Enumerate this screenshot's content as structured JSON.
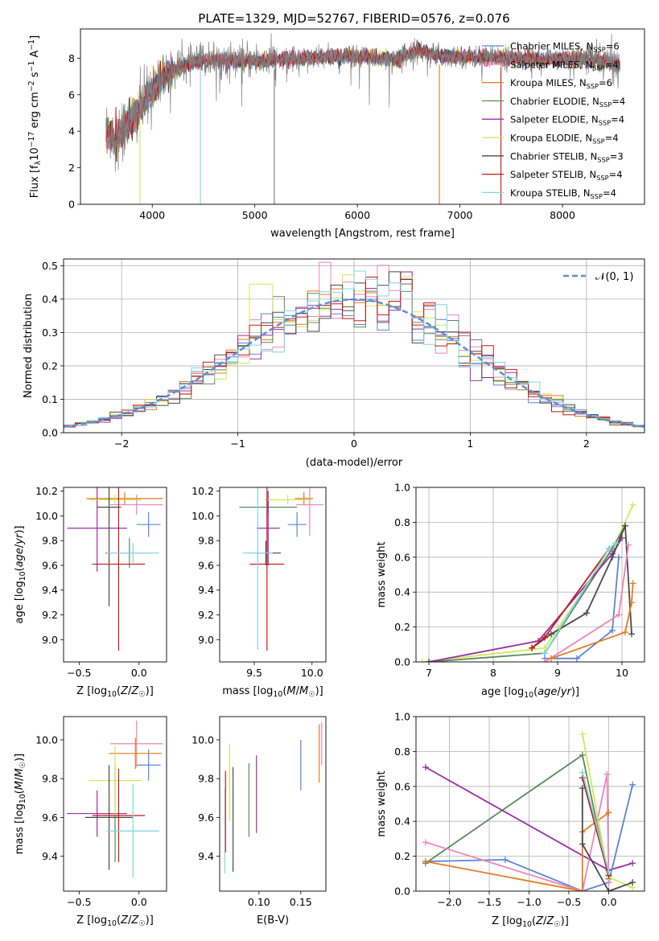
{
  "figure_title": "PLATE=1329, MJD=52767, FIBERID=0576, z=0.076",
  "colors": {
    "cb_miles": "#5b84d6",
    "sp_miles": "#ee84b4",
    "kr_miles": "#e67a1e",
    "cb_elodie": "#5b8a5b",
    "sp_elodie": "#9a2fa4",
    "kr_elodie": "#d0e85a",
    "cb_stelib": "#4a4a4a",
    "sp_stelib": "#c81818",
    "kr_stelib": "#7fd6de",
    "data": "#7f7f7f",
    "gauss": "#5b8fd6"
  },
  "chart_data": [
    {
      "id": "spectrum",
      "type": "line",
      "xlabel": "wavelength [Angstrom, rest frame]",
      "ylabel": "Flux [f_λ10^-17 erg cm^-2 s^-1 A^-1]",
      "xlim": [
        3300,
        8800
      ],
      "ylim": [
        0,
        9.6
      ],
      "xticks": [
        4000,
        5000,
        6000,
        7000,
        8000
      ],
      "yticks": [
        0,
        2,
        4,
        6,
        8
      ],
      "legend_position": "right",
      "legend": [
        {
          "label": "Chabrier MILES, N_SSP=6",
          "color_key": "cb_miles"
        },
        {
          "label": "Salpeter MILES, N_SSP=4",
          "color_key": "sp_miles"
        },
        {
          "label": "Kroupa MILES, N_SSP=6",
          "color_key": "kr_miles"
        },
        {
          "label": "Chabrier ELODIE, N_SSP=4",
          "color_key": "cb_elodie"
        },
        {
          "label": "Salpeter ELODIE, N_SSP=4",
          "color_key": "sp_elodie"
        },
        {
          "label": "Kroupa ELODIE, N_SSP=4",
          "color_key": "kr_elodie"
        },
        {
          "label": "Chabrier STELIB, N_SSP=3",
          "color_key": "cb_stelib"
        },
        {
          "label": "Salpeter STELIB, N_SSP=4",
          "color_key": "sp_stelib"
        },
        {
          "label": "Kroupa STELIB, N_SSP=4",
          "color_key": "kr_stelib"
        }
      ],
      "continuum": [
        [
          3550,
          4.1
        ],
        [
          3650,
          3.6
        ],
        [
          3750,
          4.4
        ],
        [
          3850,
          4.9
        ],
        [
          3950,
          5.9
        ],
        [
          4050,
          6.6
        ],
        [
          4150,
          7.2
        ],
        [
          4300,
          7.6
        ],
        [
          4500,
          7.9
        ],
        [
          4700,
          7.9
        ],
        [
          5000,
          7.85
        ],
        [
          5200,
          7.9
        ],
        [
          5500,
          8.0
        ],
        [
          5800,
          8.1
        ],
        [
          6100,
          8.05
        ],
        [
          6400,
          7.95
        ],
        [
          6560,
          8.45
        ],
        [
          6800,
          8.15
        ],
        [
          7100,
          8.05
        ],
        [
          7500,
          8.0
        ],
        [
          7800,
          7.95
        ],
        [
          8100,
          7.95
        ],
        [
          8400,
          7.85
        ],
        [
          8550,
          7.6
        ]
      ],
      "dips": [
        [
          3880,
          0
        ],
        [
          4470,
          0
        ],
        [
          5190,
          0
        ],
        [
          6800,
          0
        ],
        [
          7400,
          0
        ]
      ]
    },
    {
      "id": "residuals",
      "type": "histogram",
      "xlabel": "(data-model)/error",
      "ylabel": "Normed distribution",
      "xlim": [
        -2.5,
        2.5
      ],
      "ylim": [
        0,
        0.52
      ],
      "xticks": [
        -2,
        -1,
        0,
        1,
        2
      ],
      "ytick_labels": [
        "0.0",
        "0.1",
        "0.2",
        "0.3",
        "0.4",
        "0.5"
      ],
      "grid": true,
      "legend_label": "𝒩(0, 1)",
      "legend_position": "top-right",
      "bin_width": 0.1,
      "bin_start": -2.5
    },
    {
      "id": "age_vs_Z",
      "type": "errorbar",
      "xlabel": "Z [log10(Z/Z☉)]",
      "ylabel": "age [log10(age/yr)]",
      "xlim": [
        -0.63,
        0.23
      ],
      "ylim": [
        8.82,
        10.23
      ],
      "xticks": [
        -0.5,
        0.0
      ],
      "yticks": [
        9.0,
        9.2,
        9.4,
        9.6,
        9.8,
        10.0,
        10.2
      ],
      "points": [
        {
          "color_key": "cb_miles",
          "x": 0.08,
          "xerr": 0.1,
          "y": 9.93,
          "yerr": 0.1
        },
        {
          "color_key": "sp_miles",
          "x": -0.02,
          "xerr": 0.22,
          "y": 10.09,
          "yerr": 0.08
        },
        {
          "color_key": "kr_miles",
          "x": -0.12,
          "xerr": 0.32,
          "y": 10.14,
          "yerr": 0.05
        },
        {
          "color_key": "cb_elodie",
          "x": -0.08,
          "xerr": 0.2,
          "y": 9.7,
          "yerr": 0.12
        },
        {
          "color_key": "sp_elodie",
          "x": -0.35,
          "xerr": 0.25,
          "y": 9.9,
          "yerr": 0.35
        },
        {
          "color_key": "kr_elodie",
          "x": -0.2,
          "xerr": 0.22,
          "y": 10.13,
          "yerr": 0.04
        },
        {
          "color_key": "cb_stelib",
          "x": -0.25,
          "xerr": 0.1,
          "y": 10.07,
          "yerr": 0.8
        },
        {
          "color_key": "sp_stelib",
          "x": -0.17,
          "xerr": 0.22,
          "y": 9.61,
          "yerr": 0.7
        },
        {
          "color_key": "kr_stelib",
          "x": -0.05,
          "xerr": 0.22,
          "y": 9.7,
          "yerr": 0.08
        }
      ]
    },
    {
      "id": "age_vs_mass",
      "type": "errorbar",
      "xlabel": "mass [log10(M/M☉)]",
      "ylabel": "",
      "xlim": [
        9.2,
        10.12
      ],
      "ylim": [
        8.82,
        10.23
      ],
      "xticks": [
        9.5,
        10.0
      ],
      "yticks": [
        9.0,
        9.2,
        9.4,
        9.6,
        9.8,
        10.0,
        10.2
      ],
      "points": [
        {
          "color_key": "cb_miles",
          "x": 9.87,
          "xerr": 0.08,
          "y": 9.93,
          "yerr": 0.1
        },
        {
          "color_key": "sp_miles",
          "x": 9.98,
          "xerr": 0.12,
          "y": 10.09,
          "yerr": 0.25
        },
        {
          "color_key": "kr_miles",
          "x": 9.93,
          "xerr": 0.08,
          "y": 10.14,
          "yerr": 0.05
        },
        {
          "color_key": "cb_elodie",
          "x": 9.62,
          "xerr": 0.25,
          "y": 10.07,
          "yerr": 0.05
        },
        {
          "color_key": "sp_elodie",
          "x": 9.62,
          "xerr": 0.1,
          "y": 9.9,
          "yerr": 0.3
        },
        {
          "color_key": "kr_elodie",
          "x": 9.79,
          "xerr": 0.2,
          "y": 10.13,
          "yerr": 0.04
        },
        {
          "color_key": "cb_stelib",
          "x": 9.6,
          "xerr": 0.13,
          "y": 9.7,
          "yerr": 0.1
        },
        {
          "color_key": "sp_stelib",
          "x": 9.61,
          "xerr": 0.15,
          "y": 9.61,
          "yerr": 0.7
        },
        {
          "color_key": "kr_stelib",
          "x": 9.53,
          "xerr": 0.13,
          "y": 9.7,
          "yerr": 0.78
        }
      ]
    },
    {
      "id": "weight_vs_age",
      "type": "line",
      "xlabel": "age [log10(age/yr)]",
      "ylabel": "mass weight",
      "xlim": [
        6.8,
        10.35
      ],
      "ylim": [
        0,
        1.0
      ],
      "xticks": [
        7,
        8,
        9,
        10
      ],
      "ytick_labels": [
        "0.0",
        "0.2",
        "0.4",
        "0.6",
        "0.8",
        "1.0"
      ],
      "grid": true,
      "series": [
        {
          "color_key": "kr_elodie",
          "points": [
            [
              6.9,
              0.0
            ],
            [
              8.8,
              0.08
            ],
            [
              9.9,
              0.68
            ],
            [
              10.17,
              0.9
            ]
          ]
        },
        {
          "color_key": "cb_elodie",
          "points": [
            [
              7.0,
              0.0
            ],
            [
              8.8,
              0.05
            ],
            [
              9.85,
              0.65
            ],
            [
              10.05,
              0.78
            ]
          ]
        },
        {
          "color_key": "sp_elodie",
          "points": [
            [
              7.0,
              0.0
            ],
            [
              8.7,
              0.12
            ],
            [
              9.85,
              0.62
            ],
            [
              10.0,
              0.71
            ]
          ]
        },
        {
          "color_key": "cb_stelib",
          "points": [
            [
              8.6,
              0.08
            ],
            [
              8.9,
              0.16
            ],
            [
              9.45,
              0.28
            ],
            [
              9.85,
              0.6
            ],
            [
              10.05,
              0.78
            ],
            [
              10.15,
              0.16
            ]
          ]
        },
        {
          "color_key": "sp_stelib",
          "points": [
            [
              8.6,
              0.08
            ],
            [
              8.8,
              0.14
            ],
            [
              9.8,
              0.65
            ]
          ]
        },
        {
          "color_key": "kr_stelib",
          "points": [
            [
              8.8,
              0.05
            ],
            [
              9.8,
              0.65
            ],
            [
              9.9,
              0.68
            ]
          ]
        },
        {
          "color_key": "cb_miles",
          "points": [
            [
              8.8,
              0.02
            ],
            [
              9.3,
              0.02
            ],
            [
              9.85,
              0.18
            ],
            [
              9.95,
              0.6
            ]
          ]
        },
        {
          "color_key": "sp_miles",
          "points": [
            [
              8.8,
              0.0
            ],
            [
              9.95,
              0.27
            ],
            [
              10.1,
              0.67
            ]
          ]
        },
        {
          "color_key": "kr_miles",
          "points": [
            [
              8.9,
              0.02
            ],
            [
              10.05,
              0.17
            ],
            [
              10.15,
              0.34
            ],
            [
              10.17,
              0.45
            ]
          ]
        }
      ]
    },
    {
      "id": "mass_vs_Z",
      "type": "errorbar",
      "xlabel": "Z [log10(Z/Z☉)]",
      "ylabel": "mass [log10(M/M☉)]",
      "xlim": [
        -0.63,
        0.23
      ],
      "ylim": [
        9.22,
        10.12
      ],
      "xticks": [
        -0.5,
        0.0
      ],
      "yticks": [
        9.4,
        9.6,
        9.8,
        10.0
      ],
      "points": [
        {
          "color_key": "cb_miles",
          "x": 0.08,
          "xerr": 0.1,
          "y": 9.87,
          "yerr": 0.08
        },
        {
          "color_key": "sp_miles",
          "x": -0.02,
          "xerr": 0.22,
          "y": 9.98,
          "yerr": 0.12
        },
        {
          "color_key": "kr_miles",
          "x": -0.03,
          "xerr": 0.22,
          "y": 9.93,
          "yerr": 0.08
        },
        {
          "color_key": "cb_elodie",
          "x": -0.2,
          "xerr": 0.1,
          "y": 9.62,
          "yerr": 0.25
        },
        {
          "color_key": "sp_elodie",
          "x": -0.35,
          "xerr": 0.25,
          "y": 9.62,
          "yerr": 0.12
        },
        {
          "color_key": "kr_elodie",
          "x": -0.2,
          "xerr": 0.22,
          "y": 9.79,
          "yerr": 0.18
        },
        {
          "color_key": "cb_stelib",
          "x": -0.25,
          "xerr": 0.2,
          "y": 9.6,
          "yerr": 0.27
        },
        {
          "color_key": "sp_stelib",
          "x": -0.17,
          "xerr": 0.22,
          "y": 9.61,
          "yerr": 0.24
        },
        {
          "color_key": "kr_stelib",
          "x": -0.05,
          "xerr": 0.22,
          "y": 9.53,
          "yerr": 0.24
        }
      ]
    },
    {
      "id": "mass_vs_ebv",
      "type": "errorbar",
      "xlabel": "E(B-V)",
      "ylabel": "",
      "xlim": [
        0.053,
        0.18
      ],
      "ylim": [
        9.22,
        10.12
      ],
      "xticks": [
        0.1,
        0.15
      ],
      "xtick_labels": [
        "0.10",
        "0.15"
      ],
      "yticks": [
        9.4,
        9.6,
        9.8,
        10.0
      ],
      "points": [
        {
          "color_key": "cb_miles",
          "x": 0.15,
          "xerr": 0,
          "y": 9.87,
          "yerr": 0.13
        },
        {
          "color_key": "sp_miles",
          "x": 0.175,
          "xerr": 0,
          "y": 9.98,
          "yerr": 0.11
        },
        {
          "color_key": "kr_miles",
          "x": 0.172,
          "xerr": 0,
          "y": 9.93,
          "yerr": 0.15
        },
        {
          "color_key": "cb_elodie",
          "x": 0.088,
          "xerr": 0,
          "y": 9.69,
          "yerr": 0.19
        },
        {
          "color_key": "sp_elodie",
          "x": 0.097,
          "xerr": 0,
          "y": 9.72,
          "yerr": 0.2
        },
        {
          "color_key": "kr_elodie",
          "x": 0.065,
          "xerr": 0,
          "y": 9.78,
          "yerr": 0.2
        },
        {
          "color_key": "cb_stelib",
          "x": 0.069,
          "xerr": 0,
          "y": 9.59,
          "yerr": 0.27
        },
        {
          "color_key": "sp_stelib",
          "x": 0.06,
          "xerr": 0,
          "y": 9.63,
          "yerr": 0.21
        },
        {
          "color_key": "kr_stelib",
          "x": 0.059,
          "xerr": 0,
          "y": 9.53,
          "yerr": 0.22
        }
      ]
    },
    {
      "id": "weight_vs_Z",
      "type": "line",
      "xlabel": "Z [log10(Z/Z☉)]",
      "ylabel": "mass weight",
      "xlim": [
        -2.42,
        0.45
      ],
      "ylim": [
        0,
        1.0
      ],
      "xticks": [
        -2.0,
        -1.5,
        -1.0,
        -0.5,
        0.0
      ],
      "xtick_labels": [
        "−2.0",
        "−1.5",
        "−1.0",
        "−0.5",
        "0.0"
      ],
      "ytick_labels": [
        "0.0",
        "0.2",
        "0.4",
        "0.6",
        "0.8",
        "1.0"
      ],
      "grid": true,
      "series": [
        {
          "color_key": "cb_elodie",
          "points": [
            [
              -2.3,
              0.16
            ],
            [
              -0.33,
              0.78
            ],
            [
              0.0,
              0.07
            ]
          ]
        },
        {
          "color_key": "sp_elodie",
          "points": [
            [
              -2.3,
              0.71
            ],
            [
              0.0,
              0.12
            ],
            [
              0.3,
              0.16
            ]
          ]
        },
        {
          "color_key": "cb_miles",
          "points": [
            [
              -2.3,
              0.17
            ],
            [
              -1.3,
              0.18
            ],
            [
              -0.33,
              0.0
            ],
            [
              0.0,
              0.05
            ],
            [
              0.3,
              0.61
            ]
          ]
        },
        {
          "color_key": "sp_miles",
          "points": [
            [
              -2.3,
              0.28
            ],
            [
              -0.33,
              0.0
            ],
            [
              -0.02,
              0.67
            ],
            [
              0.0,
              0.05
            ]
          ]
        },
        {
          "color_key": "kr_miles",
          "points": [
            [
              -2.3,
              0.17
            ],
            [
              -0.33,
              0.0
            ],
            [
              -0.33,
              0.34
            ],
            [
              0.0,
              0.45
            ]
          ]
        },
        {
          "color_key": "kr_elodie",
          "points": [
            [
              -0.33,
              0.9
            ],
            [
              0.0,
              0.08
            ],
            [
              0.3,
              0.02
            ]
          ]
        },
        {
          "color_key": "cb_stelib",
          "points": [
            [
              -0.33,
              0.59
            ],
            [
              -0.33,
              0.27
            ],
            [
              0.0,
              0.0
            ],
            [
              0.3,
              0.05
            ]
          ]
        },
        {
          "color_key": "sp_stelib",
          "points": [
            [
              -0.33,
              0.65
            ],
            [
              0.0,
              0.09
            ]
          ]
        },
        {
          "color_key": "kr_stelib",
          "points": [
            [
              -0.33,
              0.68
            ],
            [
              0.0,
              0.11
            ]
          ]
        }
      ]
    }
  ]
}
